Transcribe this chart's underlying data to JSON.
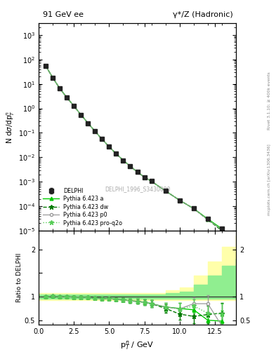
{
  "title_left": "91 GeV ee",
  "title_right": "γ*/Z (Hadronic)",
  "ylabel_main": "N dσ/dp$_T^n$",
  "ylabel_ratio": "Ratio to DELPHI",
  "xlabel": "p$_T^n$ / GeV",
  "watermark": "DELPHI_1996_S3430090",
  "right_label": "mcplots.cern.ch [arXiv:1306.3436]",
  "right_label2": "Rivet 3.1.10; ≥ 400k events",
  "data_x": [
    0.5,
    1.0,
    1.5,
    2.0,
    2.5,
    3.0,
    3.5,
    4.0,
    4.5,
    5.0,
    5.5,
    6.0,
    6.5,
    7.0,
    7.5,
    8.0,
    9.0,
    10.0,
    11.0,
    12.0,
    13.0
  ],
  "data_y": [
    55,
    18,
    6.5,
    2.8,
    1.25,
    0.55,
    0.25,
    0.115,
    0.055,
    0.027,
    0.014,
    0.0075,
    0.0043,
    0.0025,
    0.00155,
    0.00105,
    0.00042,
    0.000175,
    8e-05,
    3e-05,
    1.2e-05
  ],
  "data_yerr_lo": [
    2.5,
    0.7,
    0.28,
    0.12,
    0.05,
    0.022,
    0.01,
    0.0048,
    0.0022,
    0.0011,
    0.00058,
    0.0003,
    0.00018,
    0.00011,
    7.2e-05,
    5e-05,
    2.2e-05,
    1.1e-05,
    5.8e-06,
    2.8e-06,
    1.6e-06
  ],
  "data_yerr_hi": [
    2.5,
    0.7,
    0.28,
    0.12,
    0.05,
    0.022,
    0.01,
    0.0048,
    0.0022,
    0.0011,
    0.00058,
    0.0003,
    0.00018,
    0.00011,
    7.2e-05,
    5e-05,
    2.2e-05,
    1.1e-05,
    5.8e-06,
    2.8e-06,
    1.6e-06
  ],
  "mc_x": [
    0.5,
    1.0,
    1.5,
    2.0,
    2.5,
    3.0,
    3.5,
    4.0,
    4.5,
    5.0,
    5.5,
    6.0,
    6.5,
    7.0,
    7.5,
    8.0,
    9.0,
    10.0,
    11.0,
    12.0,
    13.0
  ],
  "pythia_a_y": [
    55,
    18,
    6.5,
    2.8,
    1.25,
    0.55,
    0.25,
    0.115,
    0.055,
    0.027,
    0.014,
    0.0075,
    0.0043,
    0.0025,
    0.00155,
    0.00105,
    0.00042,
    0.000175,
    8e-05,
    3e-05,
    1.2e-05
  ],
  "pythia_dw_y": [
    55,
    18,
    6.5,
    2.8,
    1.25,
    0.55,
    0.25,
    0.115,
    0.055,
    0.027,
    0.014,
    0.0075,
    0.0043,
    0.0025,
    0.00155,
    0.00105,
    0.00042,
    0.000175,
    8e-05,
    2.8e-05,
    1e-05
  ],
  "pythia_p0_y": [
    55,
    18,
    6.5,
    2.8,
    1.25,
    0.55,
    0.25,
    0.115,
    0.055,
    0.027,
    0.014,
    0.0075,
    0.0043,
    0.0025,
    0.00155,
    0.00105,
    0.00042,
    0.000175,
    8e-05,
    2.8e-05,
    1.1e-05
  ],
  "pythia_proq2o_y": [
    55,
    18,
    6.5,
    2.8,
    1.25,
    0.55,
    0.25,
    0.115,
    0.055,
    0.027,
    0.014,
    0.0075,
    0.0043,
    0.0025,
    0.00155,
    0.00105,
    0.00042,
    0.000175,
    8e-05,
    2.8e-05,
    1.1e-05
  ],
  "ratio_x": [
    0.5,
    1.0,
    1.5,
    2.0,
    2.5,
    3.0,
    3.5,
    4.0,
    4.5,
    5.0,
    5.5,
    6.0,
    6.5,
    7.0,
    7.5,
    8.0,
    9.0,
    10.0,
    11.0,
    12.0,
    13.0
  ],
  "ratio_a": [
    1.0,
    1.01,
    1.0,
    1.0,
    0.99,
    0.99,
    0.98,
    0.97,
    0.96,
    0.96,
    0.94,
    0.93,
    0.91,
    0.9,
    0.88,
    0.85,
    0.78,
    0.75,
    0.72,
    0.5,
    0.48
  ],
  "ratio_dw": [
    1.0,
    1.01,
    1.0,
    1.0,
    0.99,
    0.99,
    0.98,
    0.97,
    0.96,
    0.96,
    0.94,
    0.93,
    0.91,
    0.9,
    0.88,
    0.85,
    0.75,
    0.63,
    0.58,
    0.62,
    0.65
  ],
  "ratio_p0": [
    1.0,
    1.01,
    1.0,
    1.0,
    0.99,
    0.99,
    0.98,
    0.97,
    0.96,
    0.96,
    0.94,
    0.93,
    0.91,
    0.9,
    0.88,
    0.85,
    0.78,
    0.74,
    0.85,
    0.85,
    0.38
  ],
  "ratio_proq2o": [
    1.0,
    1.01,
    1.0,
    1.0,
    0.99,
    0.99,
    0.98,
    0.97,
    0.96,
    0.96,
    0.94,
    0.93,
    0.91,
    0.9,
    0.88,
    0.85,
    0.78,
    0.74,
    0.8,
    0.65,
    0.63
  ],
  "ratio_err": [
    0.02,
    0.02,
    0.02,
    0.02,
    0.02,
    0.02,
    0.02,
    0.02,
    0.03,
    0.03,
    0.03,
    0.04,
    0.04,
    0.05,
    0.06,
    0.07,
    0.09,
    0.12,
    0.14,
    0.18,
    0.22
  ],
  "band_edges": [
    0.0,
    1.0,
    2.0,
    3.0,
    4.0,
    5.0,
    6.0,
    7.0,
    8.0,
    9.0,
    10.0,
    11.0,
    12.0,
    13.0,
    14.0
  ],
  "band_green_lo": [
    0.95,
    0.95,
    0.95,
    0.95,
    0.95,
    0.95,
    0.95,
    0.95,
    0.95,
    0.95,
    0.95,
    0.95,
    0.95,
    0.95,
    0.95
  ],
  "band_green_hi": [
    1.05,
    1.05,
    1.05,
    1.05,
    1.05,
    1.05,
    1.05,
    1.05,
    1.05,
    1.07,
    1.1,
    1.25,
    1.45,
    1.65,
    1.8
  ],
  "band_yellow_lo": [
    0.92,
    0.92,
    0.92,
    0.92,
    0.92,
    0.92,
    0.92,
    0.92,
    0.92,
    0.92,
    0.92,
    0.92,
    0.92,
    0.92,
    0.92
  ],
  "band_yellow_hi": [
    1.08,
    1.08,
    1.08,
    1.08,
    1.08,
    1.08,
    1.08,
    1.08,
    1.08,
    1.13,
    1.2,
    1.45,
    1.75,
    2.05,
    2.3
  ],
  "color_a": "#00cc00",
  "color_dw": "#007700",
  "color_p0": "#999999",
  "color_proq2o": "#55cc55",
  "color_data": "#222222",
  "color_green_band": "#90ee90",
  "color_yellow_band": "#ffffaa",
  "ylim_main": [
    1e-05,
    3000
  ],
  "ylim_ratio": [
    0.4,
    2.4
  ],
  "xlim": [
    0,
    14.0
  ]
}
